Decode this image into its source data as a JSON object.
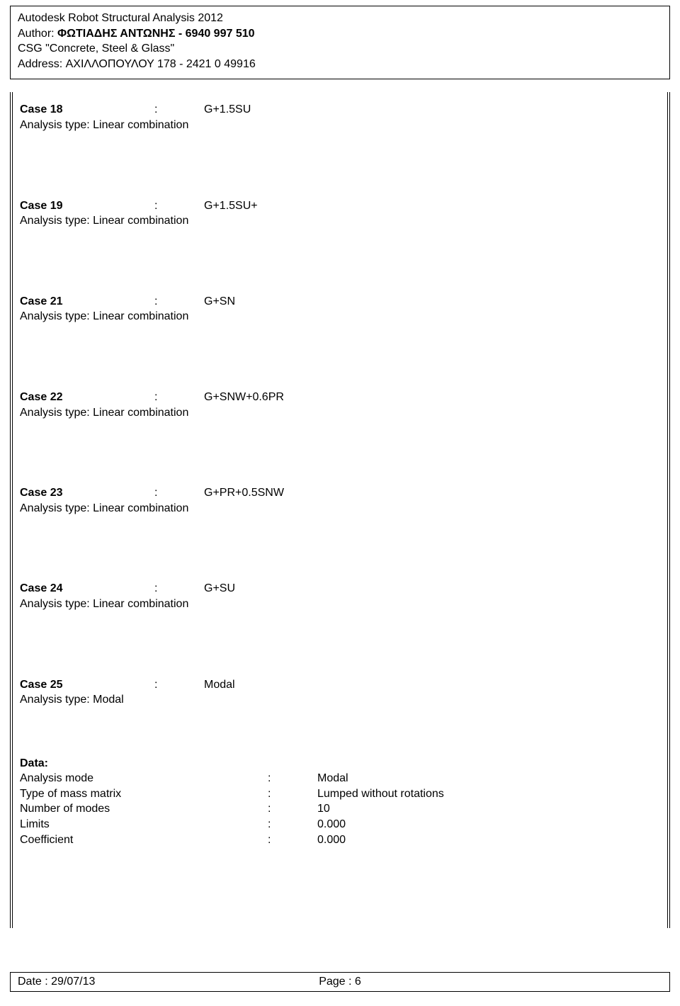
{
  "header": {
    "software": "Autodesk Robot Structural Analysis 2012",
    "author_label": "Author:",
    "author_value": "ΦΩΤΙΑΔΗΣ ΑΝΤΩΝΗΣ - 6940 997 510",
    "company": "CSG \"Concrete, Steel & Glass\"",
    "address_label": "Address:",
    "address_value": "ΑΧΙΛΛΟΠΟΥΛΟΥ 178 - 2421 0 49916"
  },
  "cases": [
    {
      "label": "Case 18",
      "colon": ":",
      "name": "G+1.5SU",
      "analysis": "Analysis type: Linear combination"
    },
    {
      "label": "Case 19",
      "colon": ":",
      "name": "G+1.5SU+",
      "analysis": "Analysis type: Linear combination"
    },
    {
      "label": "Case 21",
      "colon": ":",
      "name": "G+SN",
      "analysis": "Analysis type: Linear combination"
    },
    {
      "label": "Case 22",
      "colon": ":",
      "name": "G+SNW+0.6PR",
      "analysis": "Analysis type: Linear combination"
    },
    {
      "label": "Case 23",
      "colon": ":",
      "name": "G+PR+0.5SNW",
      "analysis": "Analysis type: Linear combination"
    },
    {
      "label": "Case 24",
      "colon": ":",
      "name": "G+SU",
      "analysis": "Analysis type: Linear combination"
    },
    {
      "label": "Case 25",
      "colon": ":",
      "name": "Modal",
      "analysis": "Analysis type: Modal"
    }
  ],
  "data_section": {
    "heading": "Data:",
    "rows": [
      {
        "label": "Analysis mode",
        "colon": ":",
        "value": "Modal"
      },
      {
        "label": "Type of mass matrix",
        "colon": ":",
        "value": "Lumped without rotations"
      },
      {
        "label": "Number of modes",
        "colon": ":",
        "value": "10"
      },
      {
        "label": "Limits",
        "colon": ":",
        "value": " 0.000"
      },
      {
        "label": "Coefficient",
        "colon": ":",
        "value": " 0.000"
      }
    ]
  },
  "footer": {
    "date": "Date : 29/07/13",
    "page": "Page : 6"
  }
}
